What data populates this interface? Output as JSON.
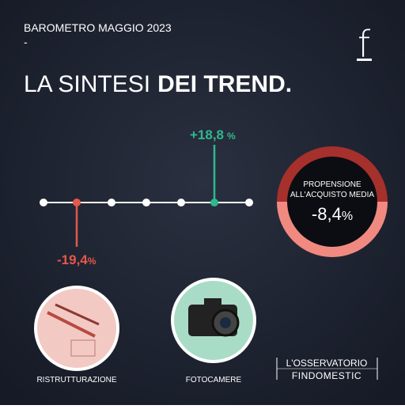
{
  "header": {
    "title": "BAROMETRO MAGGIO 2023",
    "dash": "-"
  },
  "logo": "f",
  "headline": {
    "light": "LA SINTESI",
    "bold": "DEI TREND."
  },
  "items": [
    {
      "value": "-19,4",
      "unit": "%",
      "label": "RISTRUTTURAZIONE"
    },
    {
      "value": "+18,8",
      "unit": "%",
      "label": "FOTOCAMERE"
    }
  ],
  "summary": {
    "line1": "PROPENSIONE",
    "line2": "ALL'ACQUISTO MEDIA",
    "value": "-8,4",
    "unit": "%"
  },
  "brand": {
    "line1": "L'OSSERVATORIO",
    "line2": "FINDOMESTIC"
  }
}
